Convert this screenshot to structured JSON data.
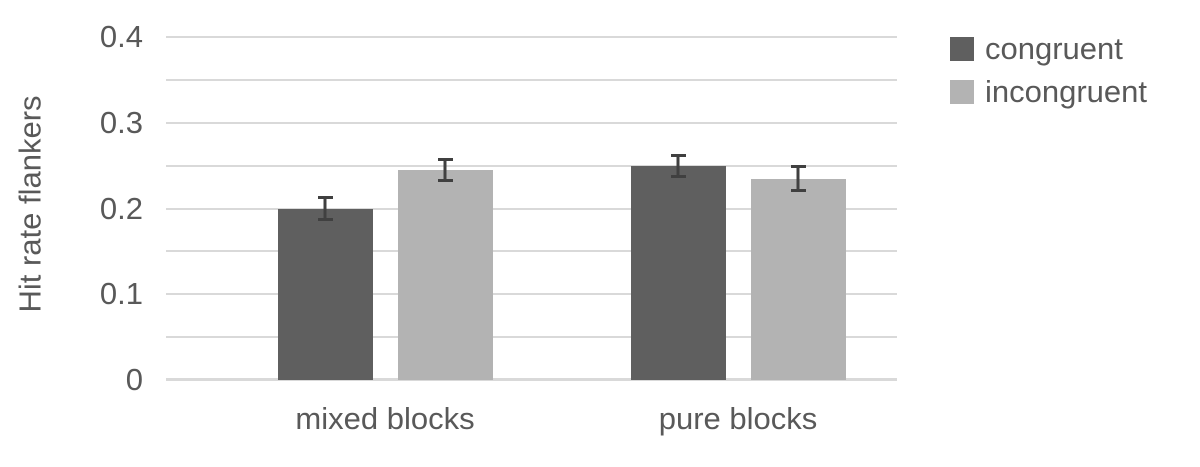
{
  "chart_data": {
    "type": "bar",
    "title": "",
    "ylabel": "Hit rate flankers",
    "xlabel": "",
    "categories": [
      "mixed blocks",
      "pure blocks"
    ],
    "series": [
      {
        "name": "congruent",
        "color": "#5f5f5f",
        "values": [
          0.2,
          0.25
        ],
        "errors": [
          0.015,
          0.014
        ]
      },
      {
        "name": "incongruent",
        "color": "#b3b3b3",
        "values": [
          0.245,
          0.235
        ],
        "errors": [
          0.014,
          0.016
        ]
      }
    ],
    "ylim": [
      0,
      0.4
    ],
    "yticks": [
      0,
      0.1,
      0.2,
      0.3,
      0.4
    ],
    "grid": true,
    "grid_step": 0.05,
    "gridline_color": "#d9d9d9",
    "axis_line_color": "#d9d9d9",
    "text_color": "#595959",
    "error_bar_color": "#404040",
    "background": "#ffffff",
    "legend_position": "top-right"
  }
}
